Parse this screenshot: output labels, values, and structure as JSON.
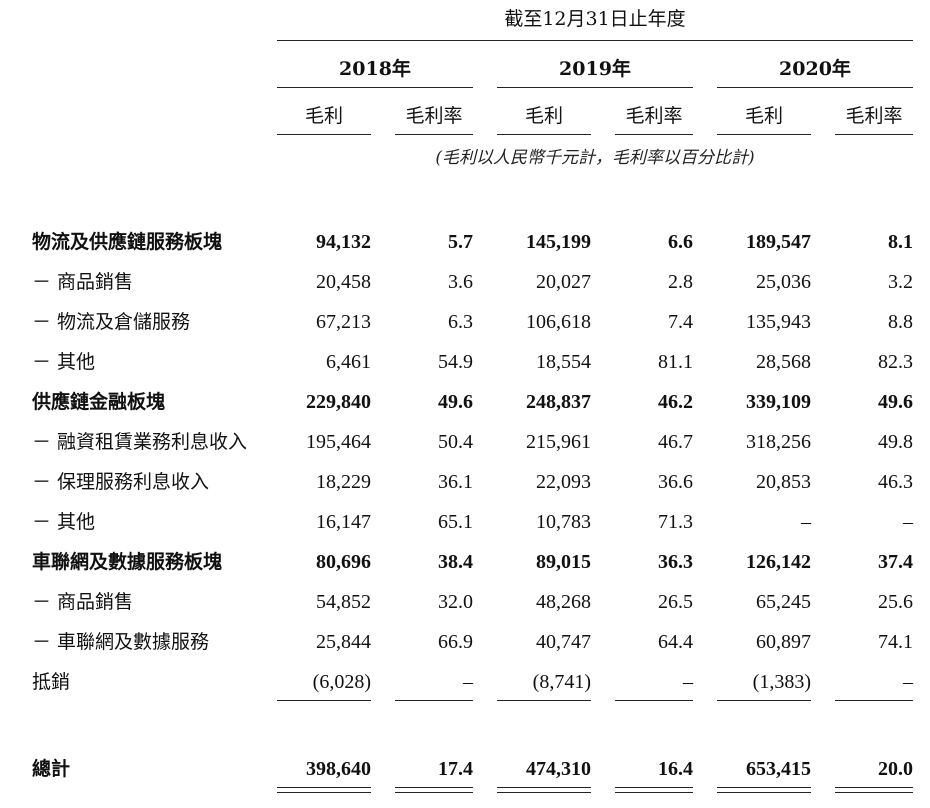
{
  "header": {
    "period_title": "截至12月31日止年度",
    "years": [
      "2018年",
      "2019年",
      "2020年"
    ],
    "col_gross_profit": "毛利",
    "col_gross_margin": "毛利率",
    "unit_note": "(毛利以人民幣千元計，毛利率以百分比計)"
  },
  "rows": [
    {
      "label": "物流及供應鏈服務板塊",
      "bold": true,
      "values": [
        "94,132",
        "5.7",
        "145,199",
        "6.6",
        "189,547",
        "8.1"
      ]
    },
    {
      "label": "－ 商品銷售",
      "bold": false,
      "values": [
        "20,458",
        "3.6",
        "20,027",
        "2.8",
        "25,036",
        "3.2"
      ]
    },
    {
      "label": "－ 物流及倉儲服務",
      "bold": false,
      "values": [
        "67,213",
        "6.3",
        "106,618",
        "7.4",
        "135,943",
        "8.8"
      ]
    },
    {
      "label": "－ 其他",
      "bold": false,
      "values": [
        "6,461",
        "54.9",
        "18,554",
        "81.1",
        "28,568",
        "82.3"
      ]
    },
    {
      "label": "供應鏈金融板塊",
      "bold": true,
      "values": [
        "229,840",
        "49.6",
        "248,837",
        "46.2",
        "339,109",
        "49.6"
      ]
    },
    {
      "label": "－ 融資租賃業務利息收入",
      "bold": false,
      "values": [
        "195,464",
        "50.4",
        "215,961",
        "46.7",
        "318,256",
        "49.8"
      ]
    },
    {
      "label": "－ 保理服務利息收入",
      "bold": false,
      "values": [
        "18,229",
        "36.1",
        "22,093",
        "36.6",
        "20,853",
        "46.3"
      ]
    },
    {
      "label": "－ 其他",
      "bold": false,
      "values": [
        "16,147",
        "65.1",
        "10,783",
        "71.3",
        "–",
        "–"
      ]
    },
    {
      "label": "車聯網及數據服務板塊",
      "bold": true,
      "values": [
        "80,696",
        "38.4",
        "89,015",
        "36.3",
        "126,142",
        "37.4"
      ]
    },
    {
      "label": "－ 商品銷售",
      "bold": false,
      "values": [
        "54,852",
        "32.0",
        "48,268",
        "26.5",
        "65,245",
        "25.6"
      ]
    },
    {
      "label": "－ 車聯網及數據服務",
      "bold": false,
      "values": [
        "25,844",
        "66.9",
        "40,747",
        "64.4",
        "60,897",
        "74.1"
      ]
    },
    {
      "label": "抵銷",
      "bold": false,
      "values": [
        "(6,028)",
        "–",
        "(8,741)",
        "–",
        "(1,383)",
        "–"
      ]
    }
  ],
  "total": {
    "label": "總計",
    "values": [
      "398,640",
      "17.4",
      "474,310",
      "16.4",
      "653,415",
      "20.0"
    ]
  }
}
